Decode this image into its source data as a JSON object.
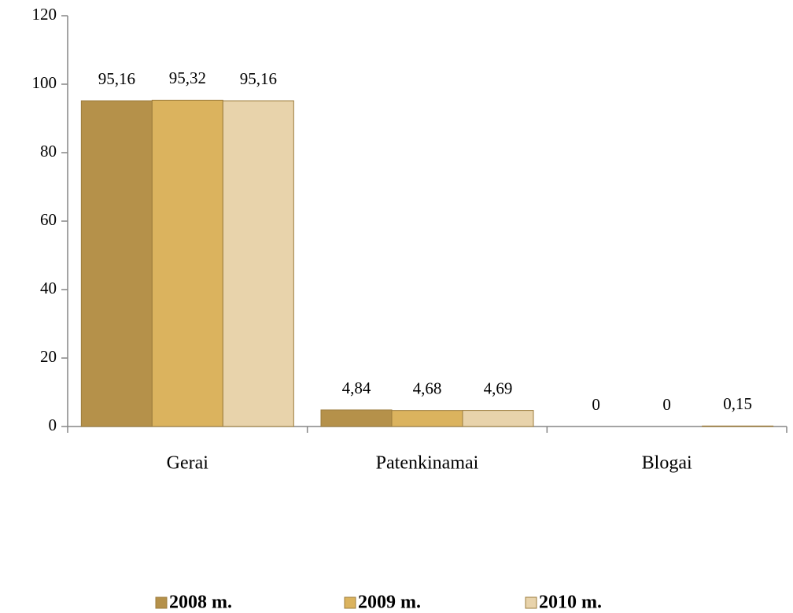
{
  "chart_data": {
    "type": "bar",
    "categories": [
      "Gerai",
      "Patenkinamai",
      "Blogai"
    ],
    "series": [
      {
        "name": "2008 m.",
        "color": "#b5914a",
        "values": [
          95.16,
          4.84,
          0
        ],
        "value_labels": [
          "95,16",
          "4,84",
          "0"
        ]
      },
      {
        "name": "2009 m.",
        "color": "#dbb35e",
        "values": [
          95.32,
          4.68,
          0
        ],
        "value_labels": [
          "95,32",
          "4,68",
          "0"
        ]
      },
      {
        "name": "2010 m.",
        "color": "#e8d3ab",
        "values": [
          95.16,
          4.69,
          0.15
        ],
        "value_labels": [
          "95,16",
          "4,69",
          "0,15"
        ]
      }
    ],
    "ylim": [
      0,
      120
    ],
    "yticks": [
      0,
      20,
      40,
      60,
      80,
      100,
      120
    ],
    "grid": false,
    "legend": "bottom"
  }
}
